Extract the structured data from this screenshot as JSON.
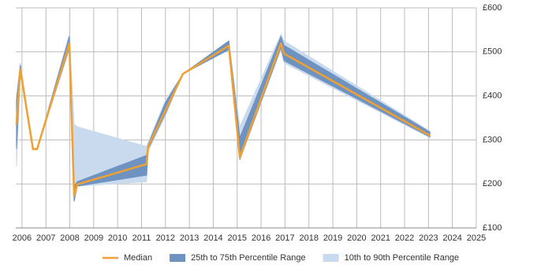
{
  "chart_data": {
    "type": "line",
    "x": [
      2005.77,
      2005.93,
      2006.46,
      2006.63,
      2007.98,
      2008.18,
      2008.31,
      2011.21,
      2011.28,
      2012.0,
      2012.73,
      2014.65,
      2015.11,
      2016.83,
      2016.96,
      2023.06
    ],
    "series": [
      {
        "name": "10th to 90th Percentile Range",
        "color": "#c9d9ee",
        "band": true,
        "lower": [
          240,
          450,
          279,
          279,
          505,
          160,
          195,
          205,
          275,
          355,
          450,
          505,
          255,
          505,
          475,
          305
        ],
        "upper": [
          400,
          475,
          279,
          279,
          540,
          335,
          330,
          285,
          295,
          390,
          450,
          525,
          330,
          540,
          525,
          320
        ]
      },
      {
        "name": "25th to 75th Percentile Range",
        "color": "#6f93c0",
        "band": true,
        "lower": [
          280,
          455,
          279,
          279,
          510,
          160,
          195,
          220,
          280,
          360,
          450,
          505,
          255,
          510,
          480,
          307
        ],
        "upper": [
          390,
          470,
          279,
          279,
          535,
          195,
          205,
          265,
          290,
          385,
          450,
          525,
          305,
          535,
          515,
          318
        ]
      },
      {
        "name": "Median",
        "color": "#f0a030",
        "values": [
          335,
          460,
          279,
          279,
          519,
          173,
          199,
          245,
          286,
          367,
          450,
          514,
          260,
          519,
          496,
          310
        ]
      }
    ],
    "xlim": [
      2005.74,
      2025
    ],
    "xticks": [
      2006,
      2007,
      2008,
      2009,
      2010,
      2011,
      2012,
      2013,
      2014,
      2015,
      2016,
      2017,
      2018,
      2019,
      2020,
      2021,
      2022,
      2023,
      2024,
      2025
    ],
    "ylim": [
      100,
      600
    ],
    "yticks": [
      {
        "value": 100,
        "label": "£100"
      },
      {
        "value": 200,
        "label": "£200"
      },
      {
        "value": 300,
        "label": "£300"
      },
      {
        "value": 400,
        "label": "£400"
      },
      {
        "value": 500,
        "label": "£500"
      },
      {
        "value": 600,
        "label": "£600"
      }
    ],
    "grid": true
  }
}
